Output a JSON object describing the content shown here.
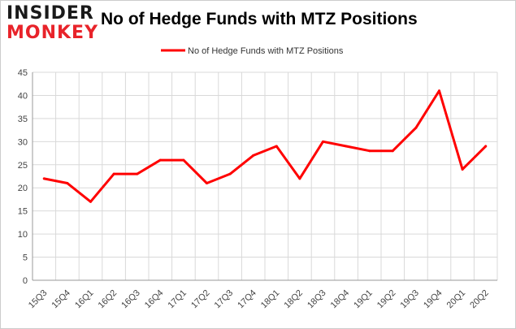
{
  "brand": {
    "line1": "INSIDER",
    "line2": "MONKEY"
  },
  "chart_data": {
    "type": "line",
    "title": "No of Hedge Funds with MTZ Positions",
    "xlabel": "",
    "ylabel": "",
    "categories": [
      "15Q3",
      "15Q4",
      "16Q1",
      "16Q2",
      "16Q3",
      "16Q4",
      "17Q1",
      "17Q2",
      "17Q3",
      "17Q4",
      "18Q1",
      "18Q2",
      "18Q3",
      "18Q4",
      "19Q1",
      "19Q2",
      "19Q3",
      "19Q4",
      "20Q1",
      "20Q2"
    ],
    "series": [
      {
        "name": "No of Hedge Funds with MTZ Positions",
        "values": [
          22,
          21,
          17,
          23,
          23,
          26,
          26,
          21,
          23,
          27,
          29,
          22,
          30,
          29,
          28,
          28,
          33,
          41,
          24,
          29
        ],
        "color": "#ff0000"
      }
    ],
    "ylim": [
      0,
      45
    ],
    "yticks": [
      0,
      5,
      10,
      15,
      20,
      25,
      30,
      35,
      40,
      45
    ],
    "grid": true,
    "legend": "top-center"
  }
}
